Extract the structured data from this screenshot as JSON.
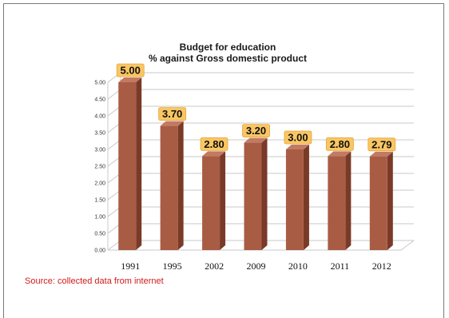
{
  "chart_data": {
    "type": "bar",
    "title": "Budget for education",
    "subtitle": "% against  Gross domestic product",
    "categories": [
      "1991",
      "1995",
      "2002",
      "2009",
      "2010",
      "2011",
      "2012"
    ],
    "values": [
      5.0,
      3.7,
      2.8,
      3.2,
      3.0,
      2.8,
      2.79
    ],
    "data_labels": [
      "5.00",
      "3.70",
      "2.80",
      "3.20",
      "3.00",
      "2.80",
      "2.79"
    ],
    "y_ticks": [
      "0.00",
      "0.50",
      "1.00",
      "1.50",
      "2.00",
      "2.50",
      "3.00",
      "3.50",
      "4.00",
      "4.50",
      "5.00"
    ],
    "ylim": [
      0,
      5
    ],
    "xlabel": "",
    "ylabel": "",
    "grid": true,
    "legend": "none"
  },
  "source": "Source: collected data from internet",
  "colors": {
    "bar_front": "#a95c44",
    "bar_side": "#7a3a28",
    "bar_top": "#c27a62",
    "label_bg": "#f9c663",
    "grid": "#c8c8c8",
    "source_text": "#d11a1a"
  }
}
